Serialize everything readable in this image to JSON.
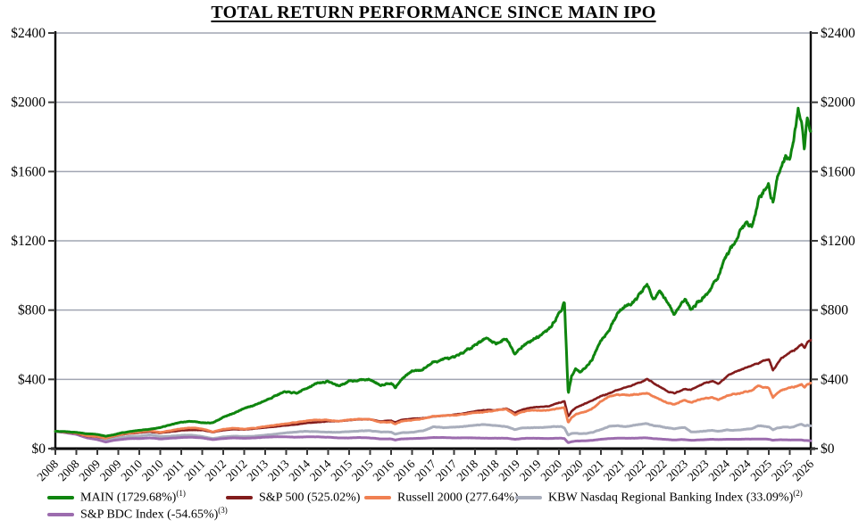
{
  "title": "TOTAL RETURN PERFORMANCE SINCE MAIN IPO",
  "chart_data": {
    "type": "line",
    "title": "TOTAL RETURN PERFORMANCE SINCE MAIN IPO",
    "xlabel": "",
    "ylabel": "",
    "x_range": [
      2008,
      2026
    ],
    "y_range": [
      0,
      2400
    ],
    "grid": true,
    "legend_position": "bottom-left",
    "y_ticks": [
      0,
      400,
      800,
      1200,
      1600,
      2000,
      2400
    ],
    "y_tick_labels": [
      "$0",
      "$400",
      "$800",
      "$1200",
      "$1600",
      "$2000",
      "$2400"
    ],
    "y_axis_sides": [
      "left",
      "right"
    ],
    "x_tick_step_years": 0.5,
    "x_tick_labels": [
      "2008",
      "2008",
      "2009",
      "2009",
      "2010",
      "2010",
      "2011",
      "2011",
      "2012",
      "2012",
      "2013",
      "2013",
      "2014",
      "2014",
      "2015",
      "2015",
      "2016",
      "2016",
      "2017",
      "2017",
      "2018",
      "2018",
      "2019",
      "2019",
      "2020",
      "2020",
      "2021",
      "2021",
      "2022",
      "2022",
      "2023",
      "2023",
      "2024",
      "2024",
      "2025",
      "2025",
      "2026"
    ],
    "x": [
      2008,
      2008.25,
      2008.5,
      2008.75,
      2009,
      2009.2,
      2009.4,
      2009.6,
      2009.8,
      2010,
      2010.25,
      2010.5,
      2010.75,
      2011,
      2011.25,
      2011.5,
      2011.75,
      2012,
      2012.25,
      2012.5,
      2012.75,
      2013,
      2013.25,
      2013.5,
      2013.75,
      2014,
      2014.25,
      2014.5,
      2014.75,
      2015,
      2015.25,
      2015.5,
      2015.75,
      2016,
      2016.1,
      2016.25,
      2016.5,
      2016.75,
      2017,
      2017.25,
      2017.5,
      2017.75,
      2018,
      2018.25,
      2018.5,
      2018.75,
      2018.95,
      2019.1,
      2019.25,
      2019.5,
      2019.75,
      2019.9,
      2020.05,
      2020.13,
      2020.22,
      2020.3,
      2020.4,
      2020.5,
      2020.65,
      2020.8,
      2021,
      2021.2,
      2021.4,
      2021.6,
      2021.8,
      2022,
      2022.1,
      2022.25,
      2022.4,
      2022.6,
      2022.75,
      2022.9,
      2023,
      2023.15,
      2023.3,
      2023.5,
      2023.65,
      2023.8,
      2024,
      2024.15,
      2024.3,
      2024.45,
      2024.6,
      2024.75,
      2024.9,
      2025,
      2025.1,
      2025.2,
      2025.3,
      2025.4,
      2025.5,
      2025.6,
      2025.7,
      2025.78,
      2025.85,
      2025.92,
      2026
    ],
    "series": [
      {
        "name": "MAIN",
        "label": "MAIN (1729.68%)",
        "sup": "(1)",
        "total_return_pct": 1729.68,
        "color": "#0f850f",
        "values": [
          100,
          98,
          94,
          86,
          82,
          72,
          80,
          92,
          100,
          106,
          112,
          122,
          138,
          152,
          158,
          150,
          148,
          182,
          205,
          232,
          252,
          278,
          308,
          328,
          318,
          352,
          378,
          388,
          362,
          388,
          398,
          398,
          368,
          382,
          352,
          400,
          448,
          458,
          498,
          518,
          522,
          558,
          602,
          638,
          608,
          635,
          552,
          588,
          612,
          645,
          685,
          740,
          800,
          848,
          312,
          420,
          465,
          438,
          475,
          520,
          628,
          690,
          780,
          830,
          855,
          915,
          945,
          855,
          905,
          840,
          775,
          835,
          870,
          800,
          845,
          885,
          935,
          1000,
          1105,
          1180,
          1250,
          1300,
          1285,
          1440,
          1490,
          1520,
          1420,
          1560,
          1640,
          1700,
          1660,
          1800,
          1960,
          1890,
          1720,
          1930,
          1835
        ]
      },
      {
        "name": "S&P 500",
        "label": "S&P 500 (525.02%)",
        "sup": "",
        "total_return_pct": 525.02,
        "color": "#821c1c",
        "values": [
          100,
          95,
          88,
          72,
          68,
          60,
          72,
          82,
          88,
          92,
          98,
          90,
          98,
          105,
          108,
          107,
          95,
          106,
          112,
          110,
          115,
          122,
          128,
          134,
          140,
          148,
          152,
          158,
          158,
          165,
          170,
          168,
          158,
          162,
          152,
          165,
          172,
          175,
          184,
          190,
          196,
          204,
          216,
          222,
          222,
          232,
          205,
          222,
          232,
          240,
          245,
          258,
          268,
          275,
          185,
          215,
          235,
          248,
          262,
          280,
          302,
          320,
          338,
          355,
          368,
          390,
          405,
          380,
          360,
          330,
          320,
          335,
          345,
          340,
          360,
          380,
          390,
          375,
          415,
          440,
          450,
          470,
          480,
          495,
          510,
          515,
          450,
          490,
          520,
          535,
          550,
          565,
          585,
          600,
          580,
          610,
          625
        ]
      },
      {
        "name": "Russell 2000",
        "label": "Russell 2000 (277.64%)",
        "sup": "",
        "total_return_pct": 277.64,
        "color": "#f08052",
        "values": [
          100,
          96,
          90,
          74,
          70,
          60,
          74,
          84,
          90,
          96,
          104,
          94,
          104,
          115,
          120,
          115,
          98,
          112,
          118,
          114,
          118,
          128,
          136,
          144,
          152,
          162,
          164,
          166,
          158,
          166,
          172,
          170,
          152,
          155,
          142,
          158,
          165,
          172,
          188,
          190,
          192,
          198,
          208,
          212,
          222,
          228,
          195,
          210,
          218,
          222,
          222,
          230,
          235,
          238,
          150,
          180,
          200,
          205,
          215,
          232,
          272,
          305,
          310,
          308,
          312,
          315,
          322,
          300,
          285,
          265,
          255,
          270,
          278,
          265,
          280,
          290,
          295,
          280,
          305,
          315,
          318,
          330,
          335,
          365,
          355,
          350,
          295,
          320,
          335,
          345,
          350,
          355,
          365,
          370,
          350,
          372,
          378
        ]
      },
      {
        "name": "KBW Nasdaq Regional Banking Index",
        "label": "KBW Nasdaq Regional Banking Index (33.09%)",
        "sup": "(2)",
        "total_return_pct": 33.09,
        "color": "#a9aebc",
        "values": [
          100,
          92,
          85,
          70,
          62,
          48,
          60,
          66,
          70,
          72,
          80,
          70,
          72,
          76,
          78,
          70,
          58,
          68,
          72,
          70,
          72,
          78,
          84,
          92,
          96,
          100,
          98,
          96,
          94,
          98,
          102,
          104,
          96,
          96,
          84,
          92,
          94,
          102,
          126,
          122,
          124,
          128,
          136,
          140,
          132,
          128,
          110,
          118,
          120,
          122,
          124,
          128,
          128,
          120,
          78,
          88,
          90,
          86,
          88,
          94,
          110,
          128,
          132,
          128,
          135,
          142,
          145,
          132,
          128,
          120,
          115,
          120,
          122,
          95,
          98,
          102,
          105,
          100,
          108,
          105,
          108,
          112,
          115,
          132,
          128,
          125,
          108,
          118,
          122,
          125,
          122,
          128,
          138,
          142,
          130,
          135,
          133
        ]
      },
      {
        "name": "S&P BDC Index",
        "label": "S&P BDC Index (-54.65%)",
        "sup": "(3)",
        "total_return_pct": -54.65,
        "color": "#9c6cae",
        "values": [
          100,
          92,
          82,
          62,
          52,
          38,
          48,
          54,
          58,
          58,
          62,
          56,
          60,
          64,
          66,
          62,
          52,
          58,
          62,
          60,
          62,
          66,
          68,
          68,
          66,
          68,
          68,
          66,
          62,
          62,
          64,
          62,
          56,
          56,
          50,
          56,
          58,
          60,
          64,
          64,
          62,
          62,
          62,
          60,
          60,
          60,
          54,
          58,
          60,
          60,
          58,
          60,
          60,
          58,
          34,
          40,
          44,
          44,
          46,
          48,
          54,
          58,
          60,
          60,
          60,
          62,
          62,
          58,
          56,
          52,
          50,
          52,
          52,
          48,
          50,
          52,
          54,
          52,
          54,
          54,
          54,
          55,
          55,
          56,
          55,
          54,
          48,
          50,
          51,
          51,
          50,
          50,
          50,
          50,
          47,
          47,
          45.35
        ]
      }
    ],
    "colors": {
      "gridline": "#a0a5b2",
      "axis": "#000000",
      "text": "#000000"
    }
  }
}
